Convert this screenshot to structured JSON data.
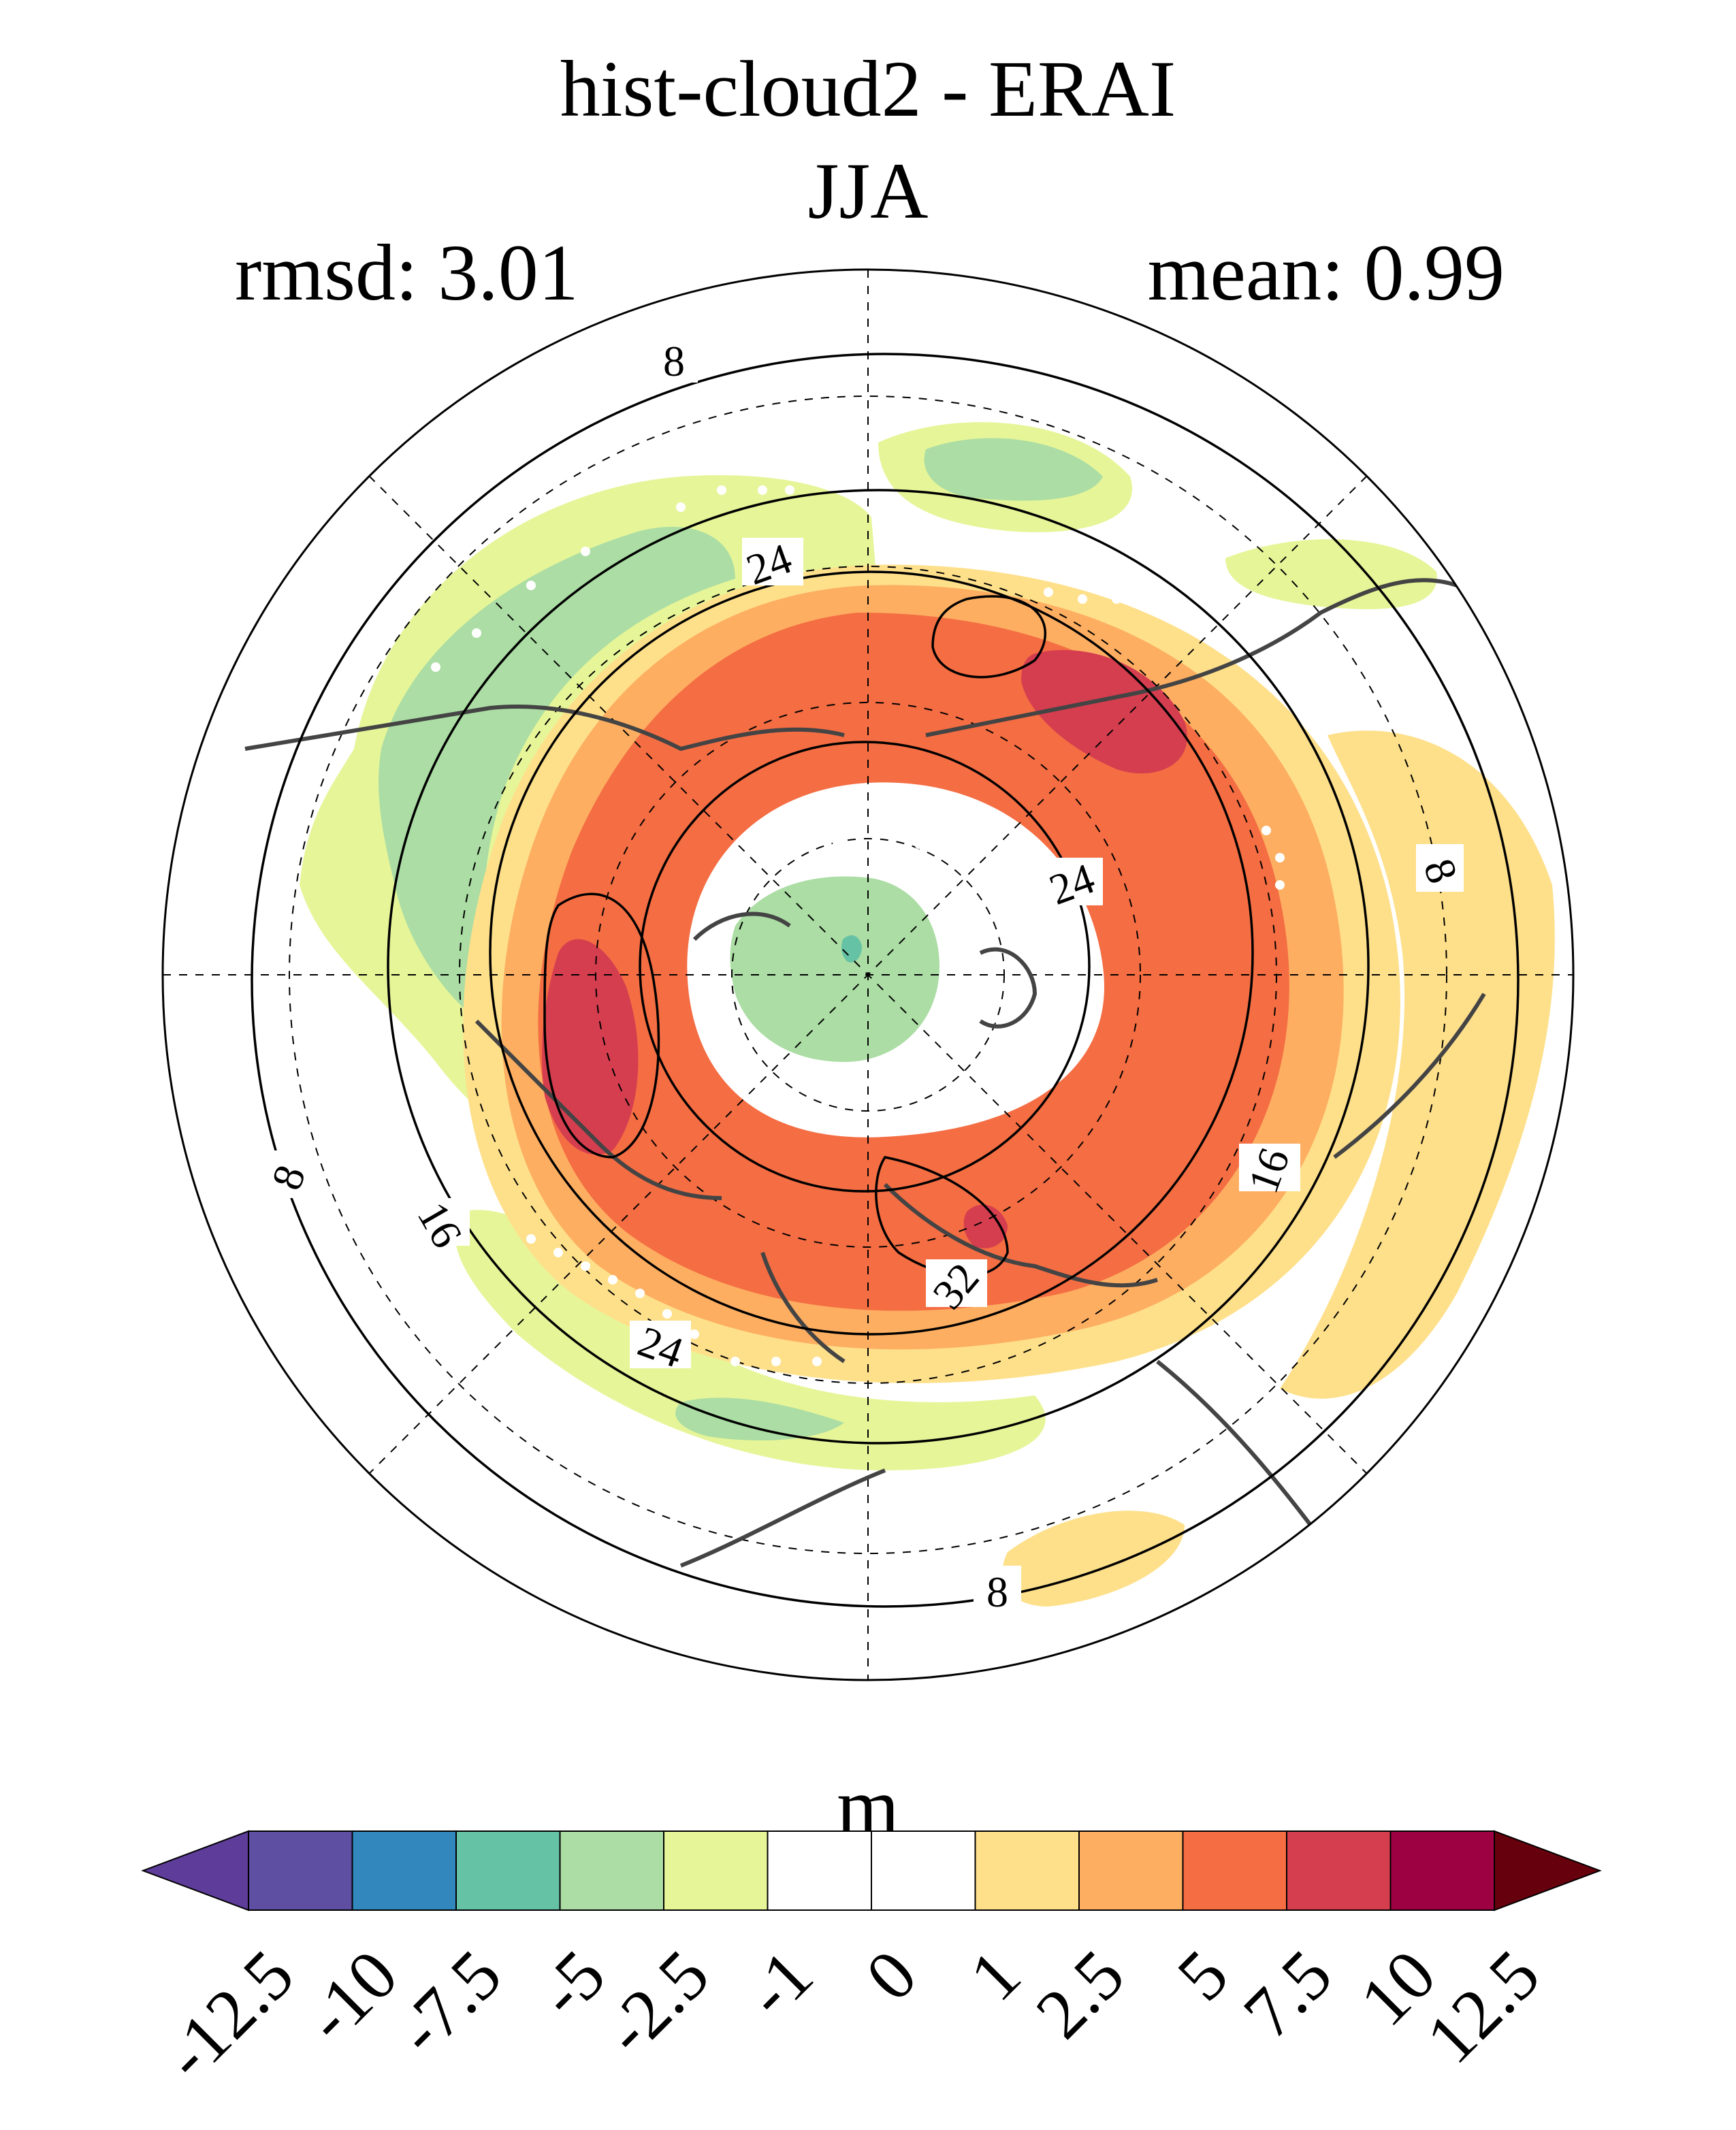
{
  "header": {
    "title": "hist-cloud2 - ERAI",
    "season": "JJA",
    "rmsd_text": "rmsd: 3.01",
    "mean_text": "mean: 0.99"
  },
  "map": {
    "projection": "north polar stereographic",
    "contour_labels": [
      "8",
      "24",
      "24",
      "8",
      "8",
      "16",
      "24",
      "32",
      "16",
      "8"
    ]
  },
  "colorbar": {
    "unit": "m",
    "tick_labels": [
      "-12.5",
      "-10",
      "-7.5",
      "-5",
      "-2.5",
      "-1",
      "0",
      "1",
      "2.5",
      "5",
      "7.5",
      "10",
      "12.5"
    ],
    "colors": [
      "#5e3c99",
      "#5e4fa2",
      "#3288bd",
      "#66c2a5",
      "#abdda4",
      "#e6f598",
      "#ffffff",
      "#ffffff",
      "#fee08b",
      "#fdae61",
      "#f46d43",
      "#d53e4f",
      "#9e0142",
      "#67000d"
    ]
  }
}
